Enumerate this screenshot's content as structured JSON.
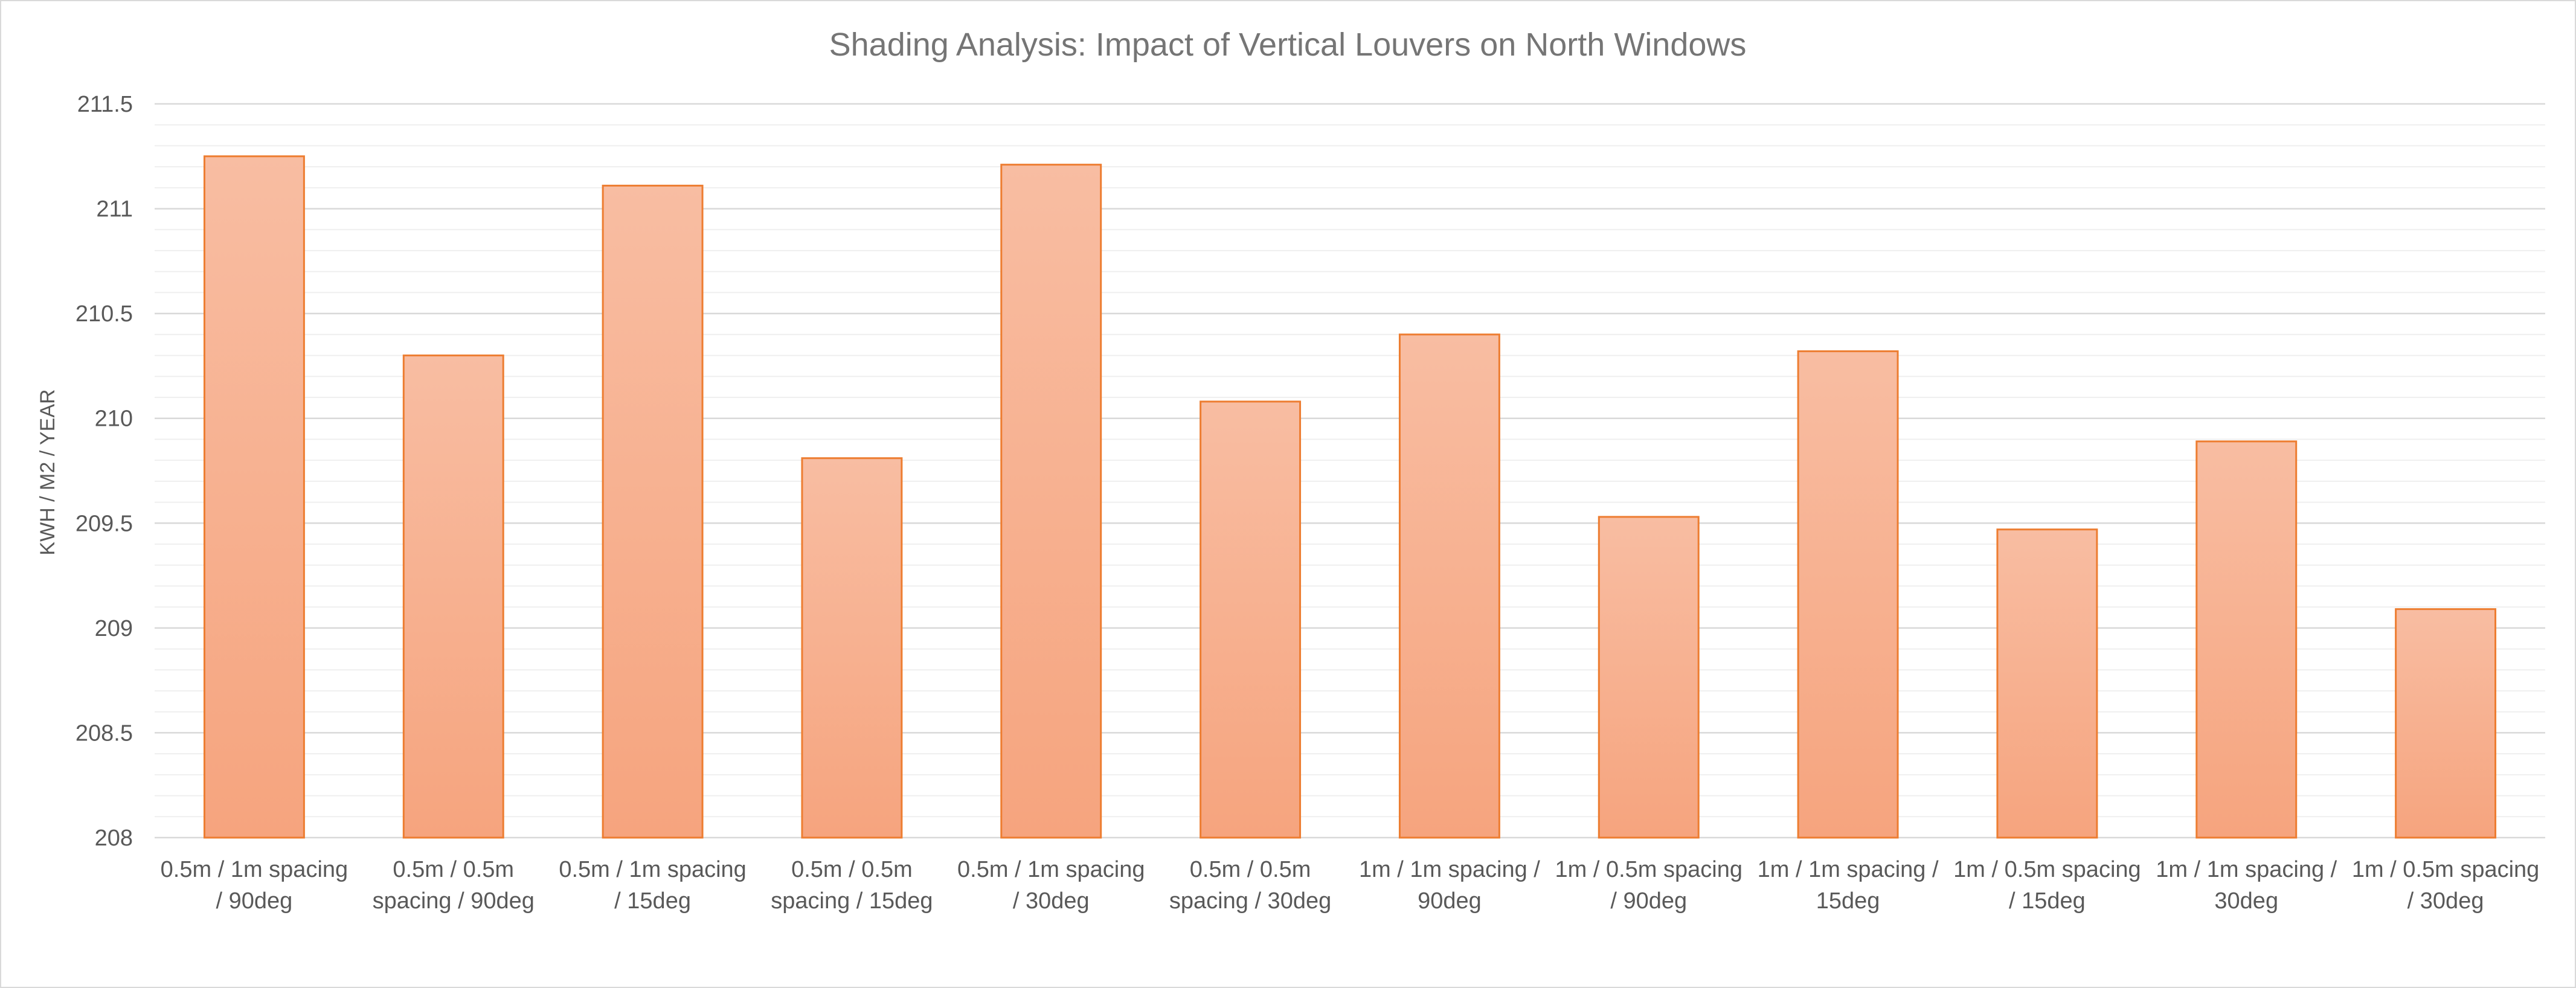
{
  "chart_data": {
    "type": "bar",
    "title": "Shading Analysis: Impact of Vertical Louvers on North Windows",
    "xlabel": "",
    "ylabel": "KWH / M2 / YEAR",
    "ylim": [
      208,
      211.5
    ],
    "yticks": [
      "208",
      "208.5",
      "209",
      "209.5",
      "210",
      "210.5",
      "211",
      "211.5"
    ],
    "grid": true,
    "minor_grid": true,
    "legend": "none",
    "bar_fill_top": "#f8bda2",
    "bar_fill_bottom": "#f6a47e",
    "bar_stroke": "#ed7d31",
    "categories": [
      [
        "0.5m / 1m spacing",
        "/ 90deg"
      ],
      [
        "0.5m / 0.5m",
        "spacing / 90deg"
      ],
      [
        "0.5m / 1m spacing",
        "/ 15deg"
      ],
      [
        "0.5m / 0.5m",
        "spacing / 15deg"
      ],
      [
        "0.5m / 1m spacing",
        "/ 30deg"
      ],
      [
        "0.5m / 0.5m",
        "spacing / 30deg"
      ],
      [
        "1m / 1m spacing /",
        "90deg"
      ],
      [
        "1m / 0.5m spacing",
        "/ 90deg"
      ],
      [
        "1m / 1m spacing /",
        "15deg"
      ],
      [
        "1m / 0.5m spacing",
        "/ 15deg"
      ],
      [
        "1m / 1m spacing /",
        "30deg"
      ],
      [
        "1m / 0.5m spacing",
        "/ 30deg"
      ]
    ],
    "values": [
      211.25,
      210.3,
      211.11,
      209.81,
      211.21,
      210.08,
      210.4,
      209.53,
      210.32,
      209.47,
      209.89,
      209.09
    ]
  }
}
